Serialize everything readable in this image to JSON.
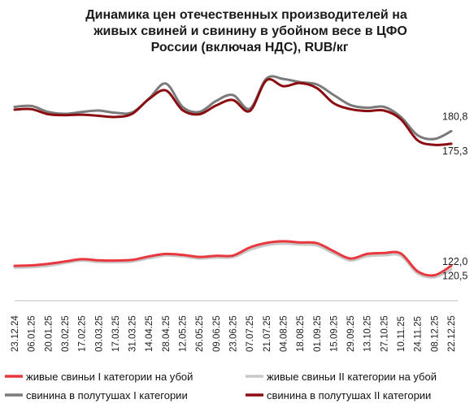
{
  "chart_data": {
    "type": "line",
    "title": "Динамика цен  отечественных производителей на живых свиней и свинину в убойном весе в ЦФО России (включая НДС), RUB/кг",
    "title_lines": [
      "Динамика цен  отечественных производителей на",
      "живых свиней и свинину в убойном весе в ЦФО",
      "России (включая НДС), RUB/кг"
    ],
    "xlabel": "",
    "ylabel": "",
    "grid": false,
    "legend_position": "bottom",
    "x": [
      "23.12.24",
      "06.01.25",
      "20.01.25",
      "03.02.25",
      "17.02.25",
      "03.03.25",
      "17.03.25",
      "31.03.25",
      "14.04.25",
      "28.04.25",
      "12.05.25",
      "26.05.25",
      "09.06.25",
      "23.06.25",
      "07.07.25",
      "21.07.25",
      "04.08.25",
      "18.08.25",
      "01.09.25",
      "15.09.25",
      "29.09.25",
      "13.10.25",
      "27.10.25",
      "10.11.25",
      "24.11.25",
      "08.12.25",
      "22.12.25"
    ],
    "series": [
      {
        "name": "живые свиньи I категории на убой",
        "color": "#e8383d",
        "values": [
          122.0,
          122.2,
          122.9,
          123.9,
          124.9,
          124.4,
          124.3,
          124.6,
          126.1,
          127.2,
          126.8,
          125.9,
          126.4,
          126.5,
          130.0,
          132.0,
          132.7,
          132.2,
          131.9,
          128.4,
          125.2,
          127.2,
          127.6,
          127.4,
          119.6,
          117.9,
          122.0
        ],
        "last_label": "122,0"
      },
      {
        "name": "живые свиньи II категории на убой",
        "color": "#c8c8c8",
        "values": [
          121.2,
          121.4,
          122.0,
          123.2,
          124.3,
          123.7,
          123.6,
          123.9,
          125.3,
          126.5,
          126.1,
          125.2,
          125.6,
          125.8,
          128.9,
          131.0,
          131.7,
          131.3,
          130.9,
          127.4,
          124.3,
          126.2,
          126.6,
          126.4,
          118.7,
          117.0,
          120.5
        ],
        "last_label": "120,5"
      },
      {
        "name": "свинина в полутушах I категории",
        "color": "#7a7a7a",
        "values": [
          191.4,
          191.8,
          189.2,
          188.4,
          189.2,
          189.8,
          188.8,
          189.0,
          195.0,
          201.6,
          191.4,
          189.2,
          194.0,
          196.6,
          190.6,
          203.8,
          203.6,
          202.2,
          201.2,
          196.6,
          192.2,
          191.0,
          191.4,
          187.0,
          179.0,
          177.4,
          180.8
        ],
        "last_label": "180,8"
      },
      {
        "name": "свинина в полутушах II категории",
        "color": "#8b0d12",
        "values": [
          190.2,
          190.4,
          188.2,
          187.8,
          188.0,
          187.5,
          187.0,
          188.4,
          194.8,
          198.6,
          190.0,
          188.2,
          192.0,
          194.4,
          189.6,
          203.0,
          200.4,
          201.8,
          199.6,
          193.0,
          190.4,
          189.6,
          189.8,
          186.0,
          176.8,
          174.8,
          175.3
        ],
        "last_label": "175,3"
      }
    ],
    "ylim": [
      105,
      215
    ],
    "xlim": [
      "23.12.24",
      "22.12.25"
    ]
  }
}
